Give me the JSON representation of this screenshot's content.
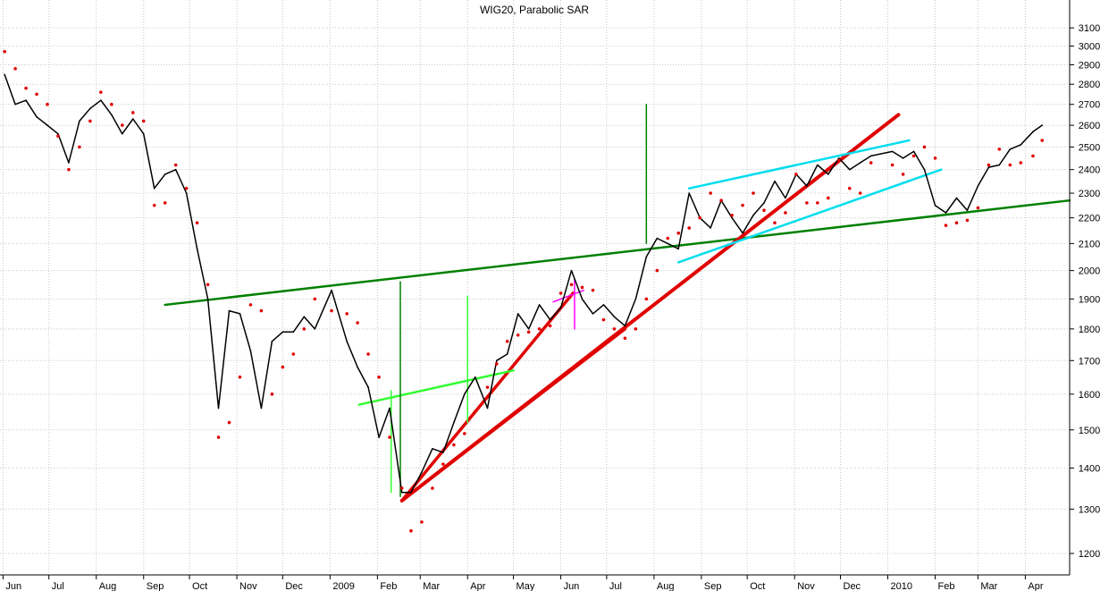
{
  "chart_data": {
    "type": "line",
    "title": "WIG20, Parabolic SAR",
    "xlabel": "",
    "ylabel": "",
    "y_scale": "log",
    "ylim": [
      1160,
      3260
    ],
    "grid": true,
    "legend": "none",
    "x_tick_labels": [
      "Jun",
      "Jul",
      "Aug",
      "Sep",
      "Oct",
      "Nov",
      "Dec",
      "2009",
      "Feb",
      "Mar",
      "Apr",
      "May",
      "Jun",
      "Jul",
      "Aug",
      "Sep",
      "Oct",
      "Nov",
      "Dec",
      "2010",
      "Feb",
      "Mar",
      "Apr"
    ],
    "y_ticks": [
      1200,
      1300,
      1400,
      1500,
      1600,
      1700,
      1800,
      1900,
      2000,
      2100,
      2200,
      2300,
      2400,
      2500,
      2600,
      2700,
      2800,
      2900,
      3000,
      3100
    ],
    "series": [
      {
        "name": "",
        "style": "line",
        "color": "#000000",
        "x": [
          "2008-06-02",
          "2008-06-09",
          "2008-06-16",
          "2008-06-23",
          "2008-06-30",
          "2008-07-07",
          "2008-07-14",
          "2008-07-21",
          "2008-07-28",
          "2008-08-04",
          "2008-08-11",
          "2008-08-18",
          "2008-08-25",
          "2008-09-01",
          "2008-09-08",
          "2008-09-15",
          "2008-09-22",
          "2008-09-29",
          "2008-10-06",
          "2008-10-13",
          "2008-10-20",
          "2008-10-27",
          "2008-11-03",
          "2008-11-10",
          "2008-11-17",
          "2008-11-24",
          "2008-12-01",
          "2008-12-08",
          "2008-12-15",
          "2008-12-22",
          "2009-01-02",
          "2009-01-12",
          "2009-01-19",
          "2009-01-26",
          "2009-02-02",
          "2009-02-09",
          "2009-02-17",
          "2009-02-23",
          "2009-03-02",
          "2009-03-09",
          "2009-03-16",
          "2009-03-23",
          "2009-03-30",
          "2009-04-06",
          "2009-04-14",
          "2009-04-20",
          "2009-04-27",
          "2009-05-04",
          "2009-05-11",
          "2009-05-18",
          "2009-05-25",
          "2009-06-01",
          "2009-06-08",
          "2009-06-15",
          "2009-06-22",
          "2009-06-29",
          "2009-07-06",
          "2009-07-13",
          "2009-07-20",
          "2009-07-27",
          "2009-08-03",
          "2009-08-10",
          "2009-08-17",
          "2009-08-24",
          "2009-08-31",
          "2009-09-07",
          "2009-09-14",
          "2009-09-21",
          "2009-09-28",
          "2009-10-05",
          "2009-10-12",
          "2009-10-19",
          "2009-10-26",
          "2009-11-02",
          "2009-11-09",
          "2009-11-16",
          "2009-11-23",
          "2009-11-30",
          "2009-12-07",
          "2009-12-14",
          "2009-12-21",
          "2010-01-04",
          "2010-01-11",
          "2010-01-18",
          "2010-01-25",
          "2010-02-01",
          "2010-02-08",
          "2010-02-15",
          "2010-02-22",
          "2010-03-01",
          "2010-03-08",
          "2010-03-15",
          "2010-03-22",
          "2010-03-29",
          "2010-04-06",
          "2010-04-12"
        ],
        "values": [
          2850,
          2700,
          2720,
          2640,
          2600,
          2560,
          2430,
          2620,
          2680,
          2720,
          2650,
          2560,
          2630,
          2560,
          2320,
          2380,
          2400,
          2300,
          2080,
          1900,
          1560,
          1860,
          1850,
          1730,
          1560,
          1760,
          1790,
          1790,
          1840,
          1800,
          1930,
          1760,
          1680,
          1620,
          1480,
          1560,
          1340,
          1340,
          1390,
          1450,
          1440,
          1520,
          1600,
          1650,
          1560,
          1700,
          1720,
          1850,
          1800,
          1880,
          1830,
          1870,
          2000,
          1900,
          1850,
          1880,
          1840,
          1810,
          1900,
          2050,
          2120,
          2100,
          2080,
          2300,
          2200,
          2160,
          2270,
          2200,
          2140,
          2210,
          2260,
          2350,
          2280,
          2380,
          2330,
          2420,
          2380,
          2450,
          2400,
          2430,
          2460,
          2480,
          2450,
          2480,
          2400,
          2250,
          2220,
          2280,
          2230,
          2330,
          2410,
          2420,
          2490,
          2510,
          2570,
          2600
        ]
      },
      {
        "name": "",
        "style": "dots",
        "color": "#e00000",
        "x": [
          "2008-06-02",
          "2008-06-09",
          "2008-06-16",
          "2008-06-23",
          "2008-06-30",
          "2008-07-07",
          "2008-07-14",
          "2008-07-21",
          "2008-07-28",
          "2008-08-04",
          "2008-08-11",
          "2008-08-18",
          "2008-08-25",
          "2008-09-01",
          "2008-09-08",
          "2008-09-15",
          "2008-09-22",
          "2008-09-29",
          "2008-10-06",
          "2008-10-13",
          "2008-10-20",
          "2008-10-27",
          "2008-11-03",
          "2008-11-10",
          "2008-11-17",
          "2008-11-24",
          "2008-12-01",
          "2008-12-08",
          "2008-12-15",
          "2008-12-22",
          "2009-01-02",
          "2009-01-12",
          "2009-01-19",
          "2009-01-26",
          "2009-02-02",
          "2009-02-09",
          "2009-02-17",
          "2009-02-23",
          "2009-03-02",
          "2009-03-09",
          "2009-03-16",
          "2009-03-23",
          "2009-03-30",
          "2009-04-06",
          "2009-04-14",
          "2009-04-20",
          "2009-04-27",
          "2009-05-04",
          "2009-05-11",
          "2009-05-18",
          "2009-05-25",
          "2009-06-01",
          "2009-06-08",
          "2009-06-15",
          "2009-06-22",
          "2009-06-29",
          "2009-07-06",
          "2009-07-13",
          "2009-07-20",
          "2009-07-27",
          "2009-08-03",
          "2009-08-10",
          "2009-08-17",
          "2009-08-24",
          "2009-08-31",
          "2009-09-07",
          "2009-09-14",
          "2009-09-21",
          "2009-09-28",
          "2009-10-05",
          "2009-10-12",
          "2009-10-19",
          "2009-10-26",
          "2009-11-02",
          "2009-11-09",
          "2009-11-16",
          "2009-11-23",
          "2009-11-30",
          "2009-12-07",
          "2009-12-14",
          "2009-12-21",
          "2010-01-04",
          "2010-01-11",
          "2010-01-18",
          "2010-01-25",
          "2010-02-01",
          "2010-02-08",
          "2010-02-15",
          "2010-02-22",
          "2010-03-01",
          "2010-03-08",
          "2010-03-15",
          "2010-03-22",
          "2010-03-29",
          "2010-04-06",
          "2010-04-12"
        ],
        "values": [
          2970,
          2880,
          2780,
          2750,
          2700,
          2550,
          2400,
          2500,
          2620,
          2760,
          2700,
          2600,
          2660,
          2620,
          2250,
          2260,
          2420,
          2320,
          2180,
          1950,
          1480,
          1520,
          1650,
          1880,
          1860,
          1600,
          1680,
          1720,
          1800,
          1900,
          1860,
          1850,
          1820,
          1720,
          1650,
          1480,
          1350,
          1250,
          1270,
          1350,
          1410,
          1460,
          1490,
          1550,
          1620,
          1690,
          1760,
          1780,
          1790,
          1800,
          1810,
          1920,
          1950,
          1940,
          1930,
          1830,
          1800,
          1770,
          1800,
          1900,
          2000,
          2120,
          2140,
          2160,
          2200,
          2300,
          2270,
          2210,
          2250,
          2300,
          2230,
          2180,
          2220,
          2380,
          2260,
          2260,
          2280,
          2440,
          2320,
          2300,
          2430,
          2420,
          2380,
          2460,
          2500,
          2450,
          2170,
          2180,
          2190,
          2240,
          2420,
          2490,
          2420,
          2430,
          2460,
          2530
        ]
      }
    ],
    "annotations": [
      {
        "type": "trendline",
        "color": "#008000",
        "points": [
          [
            "2008-09-15",
            1880
          ],
          [
            "2010-04-30",
            2270
          ]
        ]
      },
      {
        "type": "trendline",
        "color": "#e00000",
        "points": [
          [
            "2009-02-17",
            1320
          ],
          [
            "2010-01-08",
            2650
          ]
        ]
      },
      {
        "type": "trendline",
        "color": "#e00000",
        "points": [
          [
            "2009-02-17",
            1320
          ],
          [
            "2009-07-13",
            1800
          ]
        ]
      },
      {
        "type": "trendline",
        "color": "#e00000",
        "points": [
          [
            "2009-02-17",
            1320
          ],
          [
            "2009-06-09",
            1920
          ]
        ]
      },
      {
        "type": "trendline",
        "color": "#33ff33",
        "points": [
          [
            "2009-01-20",
            1570
          ],
          [
            "2009-05-01",
            1670
          ]
        ]
      },
      {
        "type": "trendline",
        "color": "#00ddee",
        "points": [
          [
            "2009-08-24",
            2320
          ],
          [
            "2010-01-15",
            2530
          ]
        ]
      },
      {
        "type": "trendline",
        "color": "#00ddee",
        "points": [
          [
            "2009-08-17",
            2030
          ],
          [
            "2010-02-05",
            2400
          ]
        ]
      },
      {
        "type": "trendline",
        "color": "#ff00ff",
        "points": [
          [
            "2009-05-27",
            1890
          ],
          [
            "2009-06-16",
            1930
          ]
        ]
      },
      {
        "type": "vline",
        "color": "#008000",
        "points": [
          [
            "2009-02-16",
            1330
          ],
          [
            "2009-02-16",
            1960
          ]
        ]
      },
      {
        "type": "vline",
        "color": "#33ff33",
        "points": [
          [
            "2009-02-10",
            1340
          ],
          [
            "2009-02-10",
            1610
          ]
        ]
      },
      {
        "type": "vline",
        "color": "#33ff33",
        "points": [
          [
            "2009-04-01",
            1520
          ],
          [
            "2009-04-01",
            1910
          ]
        ]
      },
      {
        "type": "vline",
        "color": "#008000",
        "points": [
          [
            "2009-07-27",
            2100
          ],
          [
            "2009-07-27",
            2700
          ]
        ]
      },
      {
        "type": "vline",
        "color": "#ff00ff",
        "points": [
          [
            "2009-06-10",
            1800
          ],
          [
            "2009-06-10",
            1970
          ]
        ]
      }
    ]
  }
}
